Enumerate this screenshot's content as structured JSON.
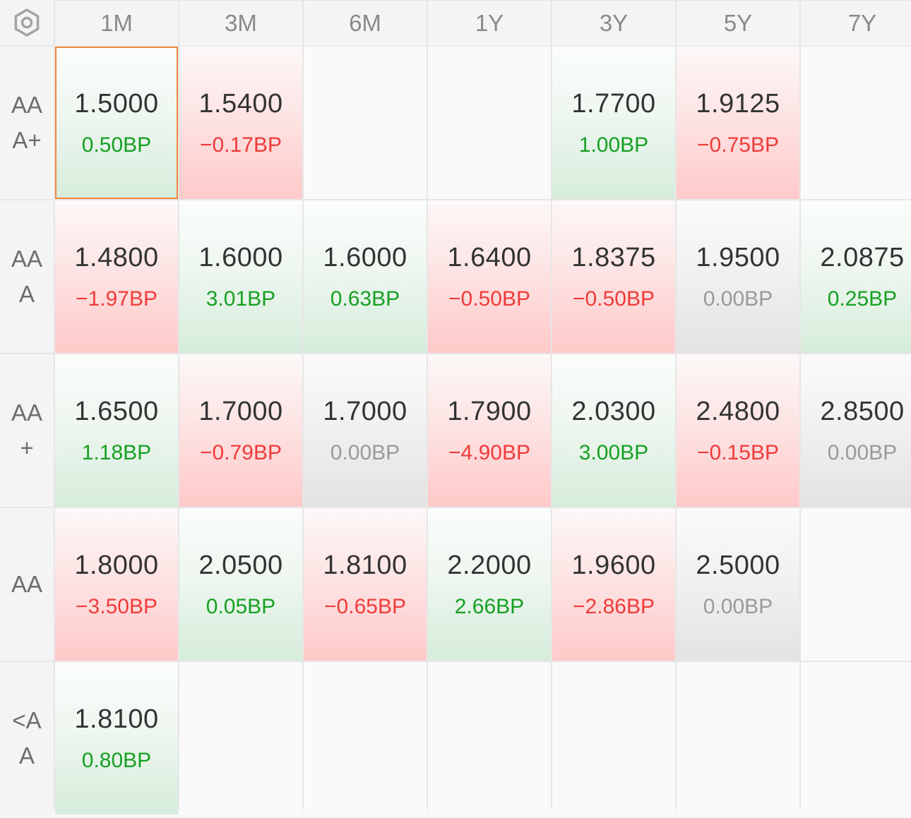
{
  "settings_icon": "gear-icon",
  "columns": [
    "1M",
    "3M",
    "6M",
    "1Y",
    "3Y",
    "5Y",
    "7Y"
  ],
  "rows": [
    {
      "label_lines": [
        "AA",
        "A+"
      ],
      "cells": [
        {
          "value": "1.5000",
          "change": "0.50BP",
          "trend": "pos",
          "selected": true
        },
        {
          "value": "1.5400",
          "change": "−0.17BP",
          "trend": "neg"
        },
        null,
        null,
        {
          "value": "1.7700",
          "change": "1.00BP",
          "trend": "pos"
        },
        {
          "value": "1.9125",
          "change": "−0.75BP",
          "trend": "neg"
        },
        null
      ]
    },
    {
      "label_lines": [
        "AA",
        "A"
      ],
      "cells": [
        {
          "value": "1.4800",
          "change": "−1.97BP",
          "trend": "neg"
        },
        {
          "value": "1.6000",
          "change": "3.01BP",
          "trend": "pos"
        },
        {
          "value": "1.6000",
          "change": "0.63BP",
          "trend": "pos"
        },
        {
          "value": "1.6400",
          "change": "−0.50BP",
          "trend": "neg"
        },
        {
          "value": "1.8375",
          "change": "−0.50BP",
          "trend": "neg"
        },
        {
          "value": "1.9500",
          "change": "0.00BP",
          "trend": "flat"
        },
        {
          "value": "2.0875",
          "change": "0.25BP",
          "trend": "pos"
        }
      ]
    },
    {
      "label_lines": [
        "AA",
        "+"
      ],
      "cells": [
        {
          "value": "1.6500",
          "change": "1.18BP",
          "trend": "pos"
        },
        {
          "value": "1.7000",
          "change": "−0.79BP",
          "trend": "neg"
        },
        {
          "value": "1.7000",
          "change": "0.00BP",
          "trend": "flat"
        },
        {
          "value": "1.7900",
          "change": "−4.90BP",
          "trend": "neg"
        },
        {
          "value": "2.0300",
          "change": "3.00BP",
          "trend": "pos"
        },
        {
          "value": "2.4800",
          "change": "−0.15BP",
          "trend": "neg"
        },
        {
          "value": "2.8500",
          "change": "0.00BP",
          "trend": "flat"
        }
      ]
    },
    {
      "label_lines": [
        "AA"
      ],
      "cells": [
        {
          "value": "1.8000",
          "change": "−3.50BP",
          "trend": "neg"
        },
        {
          "value": "2.0500",
          "change": "0.05BP",
          "trend": "pos"
        },
        {
          "value": "1.8100",
          "change": "−0.65BP",
          "trend": "neg"
        },
        {
          "value": "2.2000",
          "change": "2.66BP",
          "trend": "pos"
        },
        {
          "value": "1.9600",
          "change": "−2.86BP",
          "trend": "neg"
        },
        {
          "value": "2.5000",
          "change": "0.00BP",
          "trend": "flat"
        },
        null
      ]
    },
    {
      "label_lines": [
        "<A",
        "A"
      ],
      "cells": [
        {
          "value": "1.8100",
          "change": "0.80BP",
          "trend": "pos"
        },
        null,
        null,
        null,
        null,
        null,
        null
      ]
    }
  ]
}
